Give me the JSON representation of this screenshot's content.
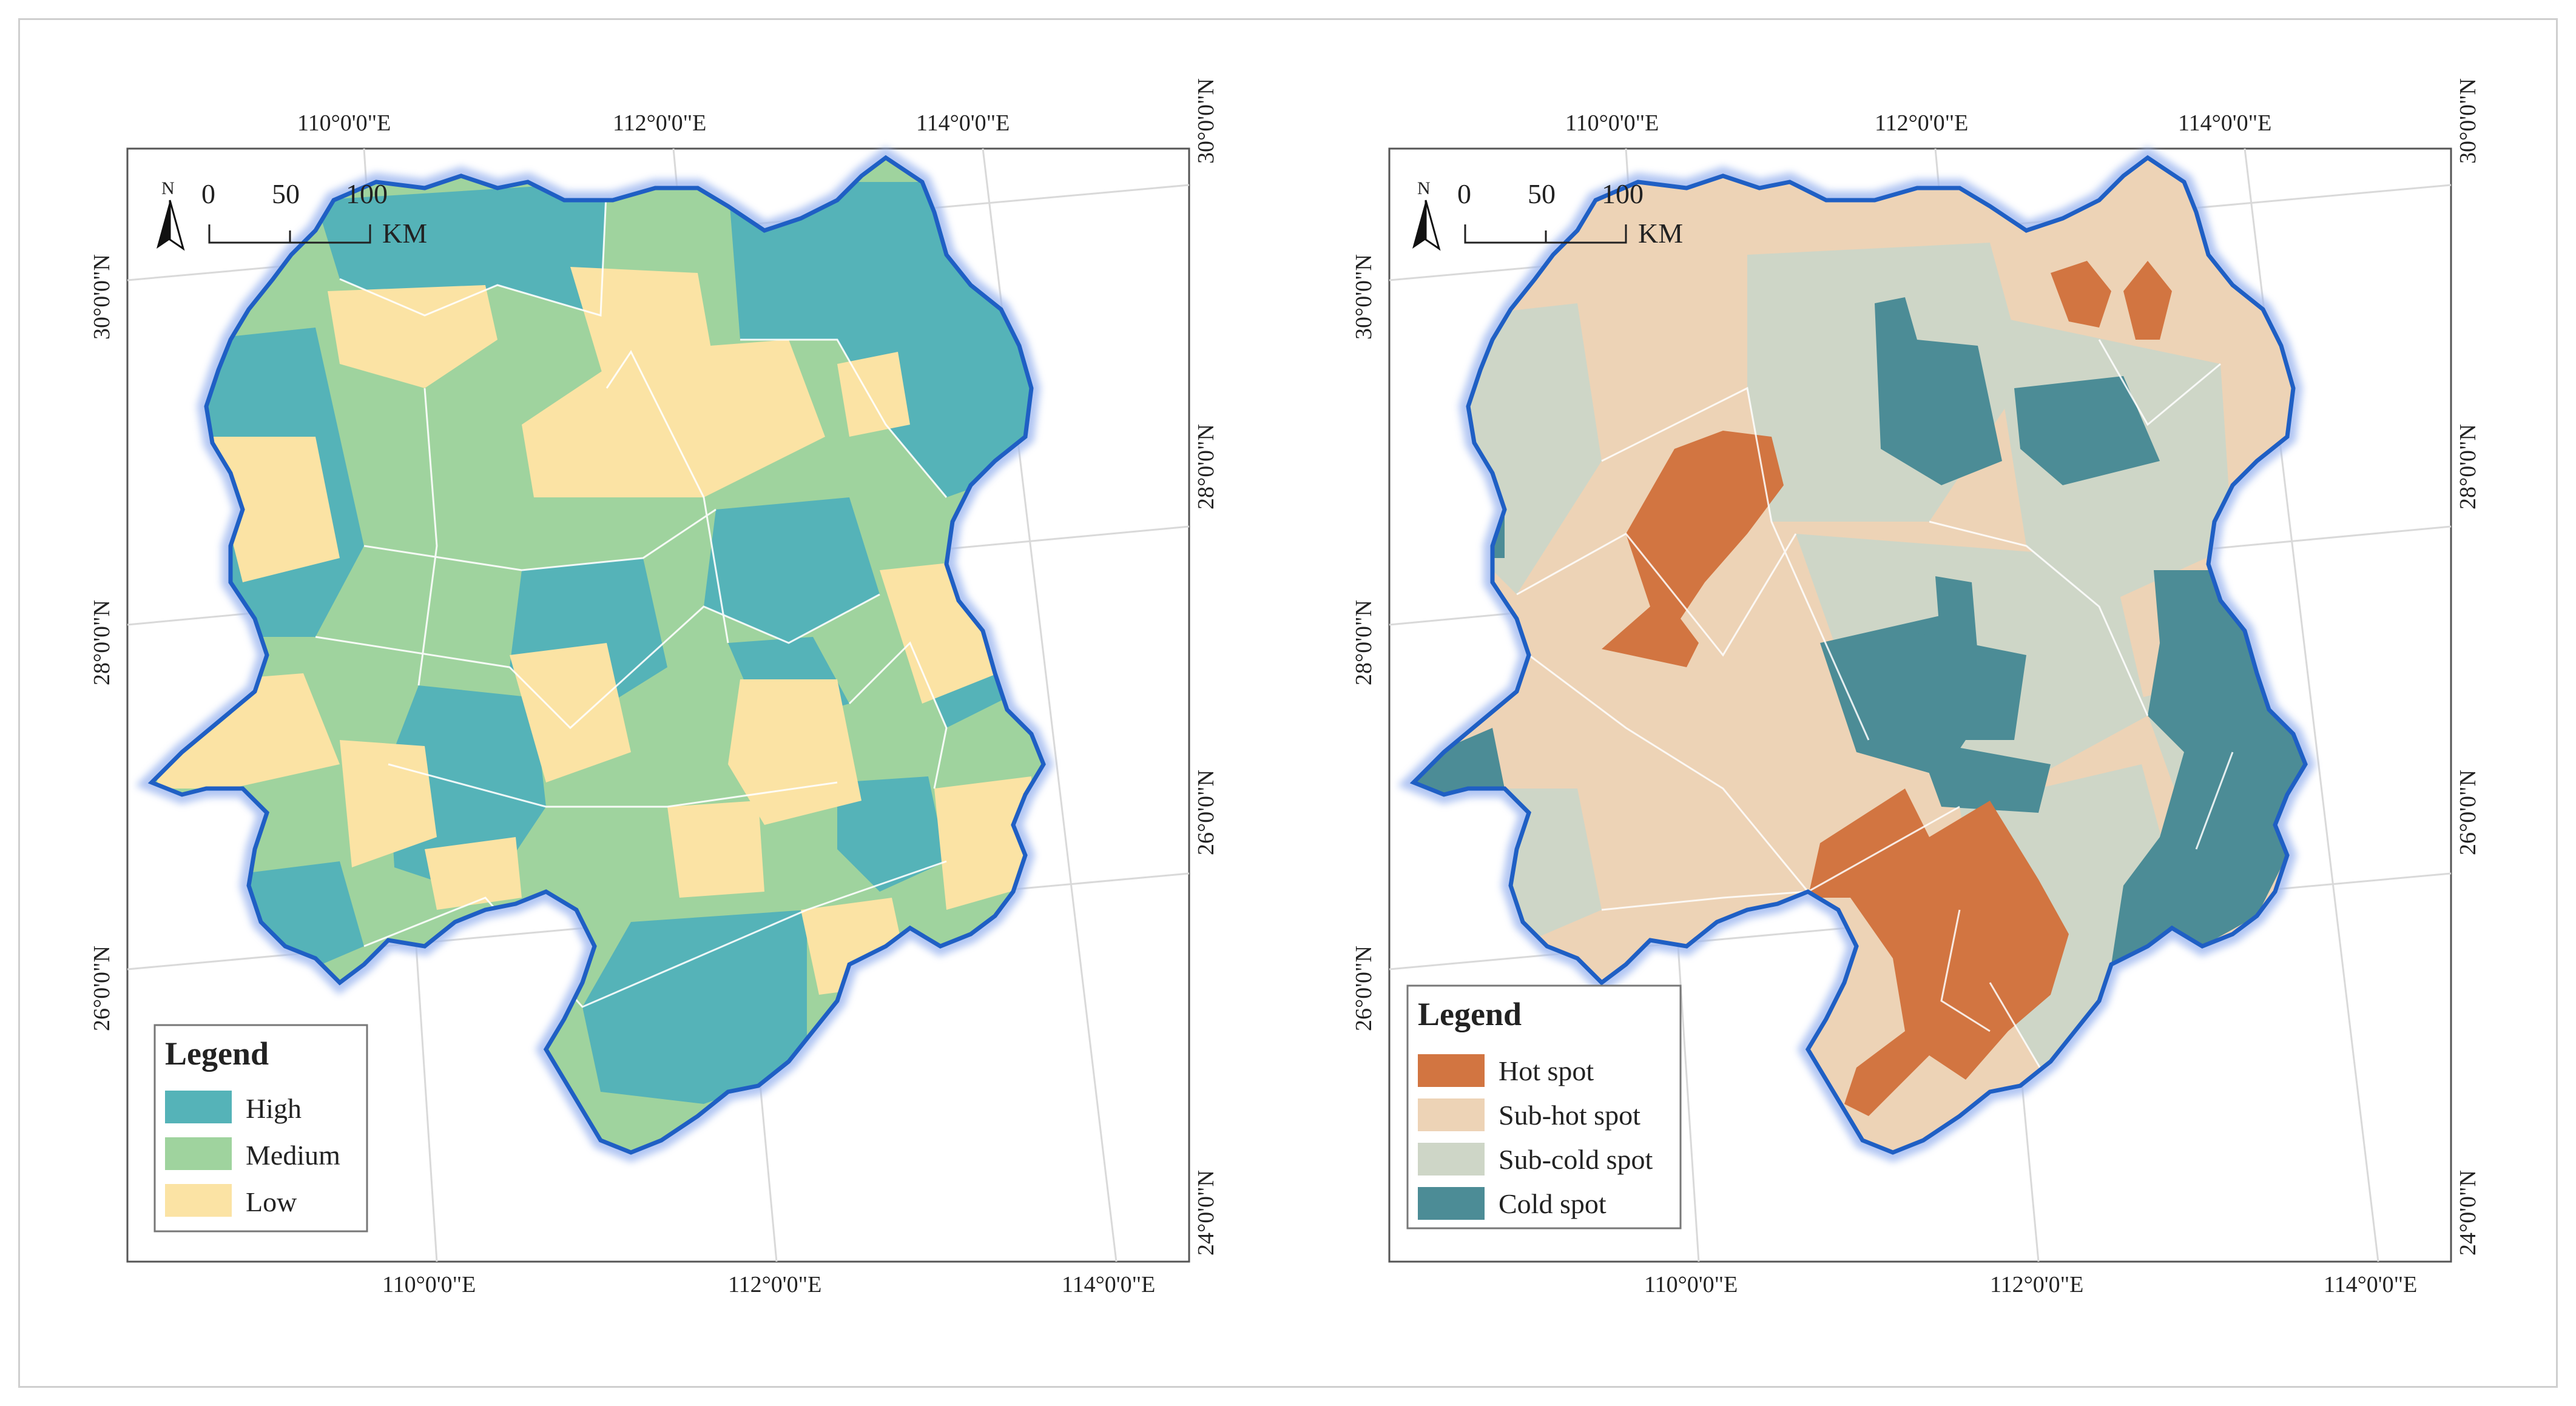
{
  "maps": [
    {
      "id": "left",
      "top_lon_labels": [
        "110°0'0\"E",
        "112°0'0\"E",
        "114°0'0\"E"
      ],
      "bottom_lon_labels": [
        "110°0'0\"E",
        "112°0'0\"E",
        "114°0'0\"E"
      ],
      "left_lat_labels": [
        "30°0'0\"N",
        "28°0'0\"N",
        "26°0'0\"N"
      ],
      "right_lat_labels": [
        "30°0'0\"N",
        "28°0'0\"N",
        "26°0'0\"N",
        "24°0'0\"N"
      ],
      "scale": {
        "ticks": [
          "0",
          "50",
          "100"
        ],
        "unit": "KM",
        "north": "N"
      },
      "legend": {
        "title": "Legend",
        "items": [
          {
            "label": "High",
            "color": "#55b3b8"
          },
          {
            "label": "Medium",
            "color": "#9fd39e"
          },
          {
            "label": "Low",
            "color": "#fbe3a4"
          }
        ]
      }
    },
    {
      "id": "right",
      "top_lon_labels": [
        "110°0'0\"E",
        "112°0'0\"E",
        "114°0'0\"E"
      ],
      "bottom_lon_labels": [
        "110°0'0\"E",
        "112°0'0\"E",
        "114°0'0\"E"
      ],
      "left_lat_labels": [
        "30°0'0\"N",
        "28°0'0\"N",
        "26°0'0\"N"
      ],
      "right_lat_labels": [
        "30°0'0\"N",
        "28°0'0\"N",
        "26°0'0\"N",
        "24°0'0\"N"
      ],
      "scale": {
        "ticks": [
          "0",
          "50",
          "100"
        ],
        "unit": "KM",
        "north": "N"
      },
      "legend": {
        "title": "Legend",
        "items": [
          {
            "label": "Hot spot",
            "color": "#d27541"
          },
          {
            "label": "Sub-hot spot",
            "color": "#edd3b6"
          },
          {
            "label": "Sub-cold spot",
            "color": "#ced6c7"
          },
          {
            "label": "Cold spot",
            "color": "#4c8c96"
          }
        ]
      }
    }
  ],
  "style": {
    "boundary_color": "#1f5fc4",
    "grid_color": "#d9d9d9",
    "frame_color": "#555555"
  }
}
